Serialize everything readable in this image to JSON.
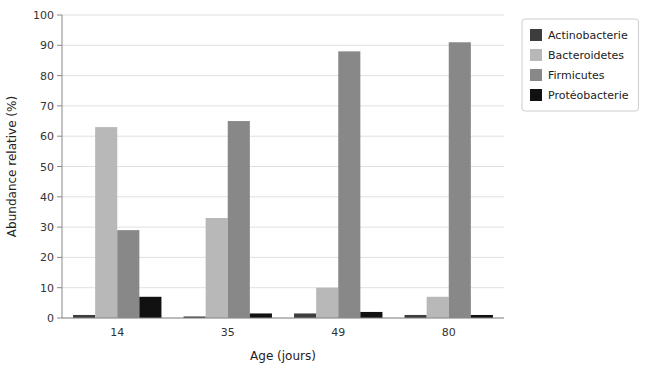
{
  "chart_data": {
    "type": "bar",
    "categories": [
      "14",
      "35",
      "49",
      "80"
    ],
    "series": [
      {
        "name": "Actinobacterie",
        "color": "#3d3d3d",
        "values": [
          1,
          0.5,
          1.5,
          1
        ]
      },
      {
        "name": "Bacteroidetes",
        "color": "#b8b8b8",
        "values": [
          63,
          33,
          10,
          7
        ]
      },
      {
        "name": "Firmicutes",
        "color": "#888888",
        "values": [
          29,
          65,
          88,
          91
        ]
      },
      {
        "name": "Protéobacterie",
        "color": "#111111",
        "values": [
          7,
          1.5,
          2,
          1
        ]
      }
    ],
    "xlabel": "Age (jours)",
    "ylabel": "Abundance relative (%)",
    "ylim": [
      0,
      100
    ],
    "yticks": [
      0,
      10,
      20,
      30,
      40,
      50,
      60,
      70,
      80,
      90,
      100
    ],
    "grid": true,
    "legend": "upper right"
  }
}
